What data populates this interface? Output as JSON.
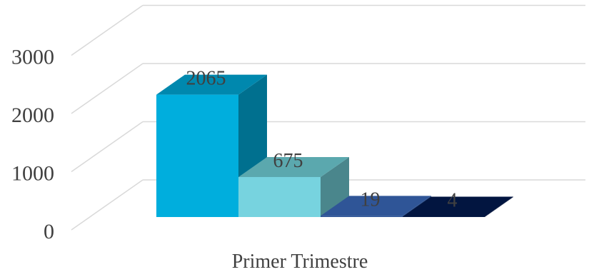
{
  "chart_data": {
    "type": "bar",
    "variant": "3d-clustered-column",
    "categories": [
      "Primer Trimestre"
    ],
    "series": [
      {
        "values": [
          2065
        ],
        "color": "#00AEDD",
        "top_color": "#0088AE",
        "side_color": "#00708F"
      },
      {
        "values": [
          675
        ],
        "color": "#77D3DF",
        "top_color": "#5BA8AE",
        "side_color": "#4A868C"
      },
      {
        "values": [
          19
        ],
        "color": "#2F5597",
        "top_color": "#2F5597",
        "side_color": "#24437A"
      },
      {
        "values": [
          4
        ],
        "color": "#0B1F4B",
        "top_color": "#021540",
        "side_color": "#000E30"
      }
    ],
    "data_labels": [
      "2065",
      "675",
      "19",
      "4"
    ],
    "yticks": [
      "0",
      "1000",
      "2000",
      "3000"
    ],
    "ylim": [
      0,
      4000
    ],
    "grid": true,
    "title": "",
    "xlabel": "",
    "ylabel": "",
    "legend": "none",
    "gridline_color": "#D9D9D9"
  }
}
